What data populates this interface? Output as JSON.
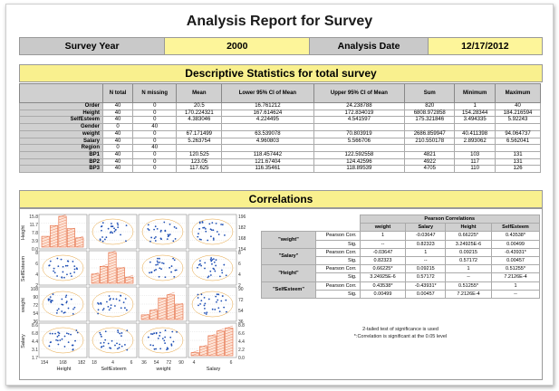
{
  "title": "Analysis Report for Survey",
  "meta": {
    "survey_year_label": "Survey Year",
    "survey_year_value": "2000",
    "analysis_date_label": "Analysis Date",
    "analysis_date_value": "12/17/2012"
  },
  "descriptive": {
    "heading": "Descriptive Statistics for total survey",
    "columns": [
      "N total",
      "N missing",
      "Mean",
      "Lower 95% CI of Mean",
      "Upper 95% CI of Mean",
      "Sum",
      "Minimum",
      "Maximum"
    ],
    "rows": [
      {
        "label": "Order",
        "cells": [
          "40",
          "0",
          "20.5",
          "16.761212",
          "24.238788",
          "820",
          "1",
          "40"
        ]
      },
      {
        "label": "Height",
        "cells": [
          "40",
          "0",
          "170.224321",
          "167.614624",
          "172.834019",
          "6808.972858",
          "154.28344",
          "184.216594"
        ]
      },
      {
        "label": "SelfEsteem",
        "cells": [
          "40",
          "0",
          "4.383046",
          "4.224495",
          "4.541597",
          "175.321846",
          "3.494335",
          "5.92243"
        ]
      },
      {
        "label": "Gender",
        "cells": [
          "0",
          "40",
          "",
          "",
          "",
          "",
          "",
          ""
        ]
      },
      {
        "label": "weight",
        "cells": [
          "40",
          "0",
          "67.171499",
          "63.539078",
          "70.803919",
          "2686.859947",
          "40.411398",
          "94.064737"
        ]
      },
      {
        "label": "Salary",
        "cells": [
          "40",
          "0",
          "5.263754",
          "4.960803",
          "5.566706",
          "210.550178",
          "2.893062",
          "6.562041"
        ]
      },
      {
        "label": "Region",
        "cells": [
          "0",
          "40",
          "",
          "",
          "",
          "",
          "",
          ""
        ]
      },
      {
        "label": "BP1",
        "cells": [
          "40",
          "0",
          "120.525",
          "118.457442",
          "122.592558",
          "4821",
          "103",
          "131"
        ]
      },
      {
        "label": "BP2",
        "cells": [
          "40",
          "0",
          "123.05",
          "121.67404",
          "124.42596",
          "4922",
          "117",
          "131"
        ]
      },
      {
        "label": "BP3",
        "cells": [
          "40",
          "0",
          "117.625",
          "116.35461",
          "118.89539",
          "4705",
          "110",
          "126"
        ]
      }
    ]
  },
  "correlations": {
    "heading": "Correlations",
    "table_caption": "Pearson Correlations",
    "columns": [
      "weight",
      "Salary",
      "Height",
      "SelfEsteem"
    ],
    "rows": [
      {
        "var": "\"weight\"",
        "pearson": [
          "1",
          "-0.03647",
          "0.66225*",
          "0.43538*"
        ],
        "sig": [
          "--",
          "0.82323",
          "3.24925E-6",
          "0.00499"
        ]
      },
      {
        "var": "\"Salary\"",
        "pearson": [
          "-0.03647",
          "1",
          "0.09215",
          "-0.43931*"
        ],
        "sig": [
          "0.82323",
          "--",
          "0.57172",
          "0.00457"
        ]
      },
      {
        "var": "\"Height\"",
        "pearson": [
          "0.66225*",
          "0.09215",
          "1",
          "0.51255*"
        ],
        "sig": [
          "3.24925E-6",
          "0.57172",
          "--",
          "7.2126E-4"
        ]
      },
      {
        "var": "\"SelfEsteem\"",
        "pearson": [
          "0.43538*",
          "-0.43931*",
          "0.51255*",
          "1"
        ],
        "sig": [
          "0.00499",
          "0.00457",
          "7.2126E-4",
          "--"
        ]
      }
    ],
    "pearson_label": "Pearson Corr.",
    "sig_label": "Sig.",
    "note1": "2-tailed test of significance is used",
    "note2": "*:Correlation is significant at the 0.05 level"
  },
  "matrix": {
    "x_labels": [
      "Height",
      "SelfEsteem",
      "weight",
      "Salary"
    ],
    "y_labels": [
      "Height",
      "SelfEsteem",
      "weight",
      "Salary"
    ],
    "x_ticks": [
      [
        "154",
        "168",
        "182"
      ],
      [
        "18",
        "4",
        "6"
      ],
      [
        "36",
        "54",
        "72",
        "90"
      ],
      [
        "4",
        "6"
      ]
    ],
    "left_ticks": [
      [
        "15.8",
        "11.7",
        "7.8",
        "3.9",
        "0.0"
      ],
      [
        "8",
        "6",
        "4",
        "2"
      ],
      [
        "108",
        "90",
        "72",
        "54",
        "36"
      ],
      [
        "8.6",
        "6.8",
        "4.4",
        "3.1",
        "1.7"
      ]
    ],
    "right_ticks": [
      [
        "196",
        "182",
        "168",
        "154"
      ],
      [
        "8",
        "6",
        "4",
        "2"
      ],
      [
        "90",
        "72",
        "54",
        "36"
      ],
      [
        "8.8",
        "6.6",
        "4.4",
        "2.2",
        "0.0"
      ]
    ],
    "colors": {
      "points": "#1f4fb4",
      "hist_stroke": "#e4673b",
      "ellipse": "#e6a23b",
      "grid": "#c8c8c8"
    }
  }
}
